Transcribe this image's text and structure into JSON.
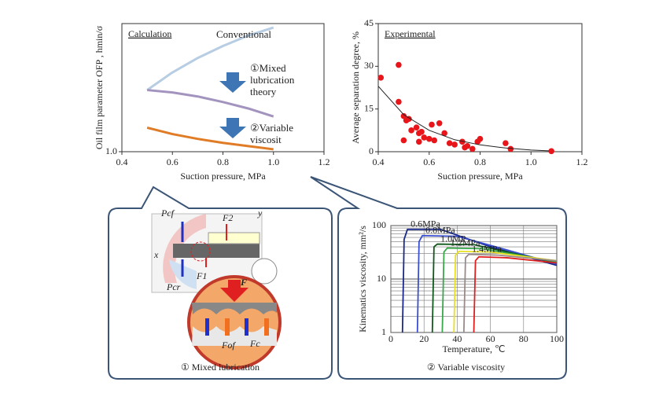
{
  "chart_data": [
    {
      "type": "line",
      "title": "Calculation",
      "xlabel": "Suction pressure, MPa",
      "ylabel": "Oil film parameter OFP , hmin/σ",
      "xlim": [
        0.4,
        1.2
      ],
      "xticks": [
        0.4,
        0.6,
        0.8,
        {
          "value": 1.0,
          "label": "1.0"
        },
        1.2
      ],
      "ylim": [
        1.0,
        2.6
      ],
      "yticks": [
        {
          "value": 1.0,
          "label": "1.0"
        }
      ],
      "x": [
        0.5,
        0.6,
        0.7,
        0.8,
        0.9,
        1.0
      ],
      "series": [
        {
          "name": "Conventional",
          "color": "#b7cde3",
          "values": [
            1.77,
            1.99,
            2.17,
            2.32,
            2.45,
            2.55
          ]
        },
        {
          "name": "①Mixed lubrication theory",
          "color": "#a394bf",
          "values": [
            1.77,
            1.74,
            1.69,
            1.62,
            1.54,
            1.44
          ]
        },
        {
          "name": "②Variable viscosit",
          "color": "#e07b26",
          "values": [
            1.3,
            1.22,
            1.16,
            1.11,
            1.07,
            1.03
          ]
        }
      ]
    },
    {
      "type": "scatter",
      "title": "Experimental",
      "xlabel": "Suction pressure, MPa",
      "ylabel": "Average separation degree, %",
      "xlim": [
        0.4,
        1.2
      ],
      "xticks": [
        0.4,
        0.6,
        0.8,
        {
          "value": 1.0,
          "label": "1.0"
        },
        1.2
      ],
      "ylim": [
        0,
        45
      ],
      "yticks": [
        0,
        15,
        30,
        45
      ],
      "series": [
        {
          "color": "#e8161b",
          "x": [
            0.41,
            0.48,
            0.48,
            0.5,
            0.51,
            0.52,
            0.5,
            0.53,
            0.55,
            0.56,
            0.56,
            0.57,
            0.58,
            0.6,
            0.61,
            0.62,
            0.64,
            0.66,
            0.68,
            0.7,
            0.73,
            0.74,
            0.75,
            0.77,
            0.79,
            0.8,
            0.9,
            0.92,
            1.08
          ],
          "values": [
            26,
            30.5,
            17.5,
            12.5,
            11,
            11.5,
            4,
            7.5,
            8.5,
            6.5,
            3.5,
            7,
            5,
            4.5,
            9.5,
            4,
            10,
            6.5,
            3,
            2.5,
            3.5,
            1.5,
            2,
            1,
            3.5,
            4.5,
            3,
            1,
            0.2
          ]
        },
        {
          "color": "#222222",
          "line": true,
          "x": [
            0.4,
            0.5,
            0.6,
            0.7,
            0.8,
            0.9,
            1.0,
            1.07
          ],
          "values": [
            23,
            13,
            7.5,
            4.2,
            2.4,
            1.3,
            0.6,
            0.3
          ]
        }
      ]
    },
    {
      "type": "line",
      "caption": "② Variable viscosity",
      "xlabel": "Temperature, ℃",
      "ylabel": "Kinematics viscosity, mm²/s",
      "log_y": true,
      "grid": true,
      "xlim": [
        0,
        100
      ],
      "xticks": [
        0,
        20,
        40,
        60,
        80,
        100
      ],
      "ylim": [
        1,
        100
      ],
      "yticks": [
        1,
        10,
        100
      ],
      "series": [
        {
          "name": "0.6MPa",
          "color": "#1a2a8a",
          "x": [
            7,
            8,
            10,
            30,
            60,
            100
          ],
          "values": [
            1,
            55,
            85,
            85,
            40,
            18
          ]
        },
        {
          "name": "0.8MPa",
          "color": "#3a4fd0",
          "x": [
            16,
            17,
            19,
            40,
            70,
            100
          ],
          "values": [
            1,
            50,
            65,
            63,
            35,
            19
          ]
        },
        {
          "name": "1.0MP",
          "color": "#0f5a1a",
          "x": [
            25,
            26,
            28,
            50,
            100
          ],
          "values": [
            1,
            40,
            45,
            44,
            20
          ]
        },
        {
          "name": "1.2MPa",
          "color": "#3aa84a",
          "x": [
            31,
            32,
            34,
            55,
            100
          ],
          "values": [
            1,
            32,
            38,
            37,
            21
          ]
        },
        {
          "name": null,
          "color": "#e8e020",
          "x": [
            38,
            39,
            41,
            60,
            100
          ],
          "values": [
            1,
            28,
            33,
            32,
            22
          ]
        },
        {
          "name": "1.4MPa",
          "color": "#9a8a8a",
          "x": [
            44,
            45,
            47,
            65,
            100
          ],
          "values": [
            1,
            25,
            29,
            28,
            22
          ]
        },
        {
          "name": null,
          "color": "#e02020",
          "x": [
            50,
            51,
            53,
            70,
            100
          ],
          "values": [
            1,
            22,
            26,
            25,
            20
          ]
        }
      ]
    }
  ],
  "diagram": {
    "caption": "① Mixed lubrication",
    "labels": {
      "pcf": "Pcf",
      "f2": "F2",
      "f1": "F1",
      "pcr": "Pcr",
      "f": "F",
      "fof": "Fof",
      "fc": "Fc",
      "x": "x",
      "y": "y"
    }
  }
}
